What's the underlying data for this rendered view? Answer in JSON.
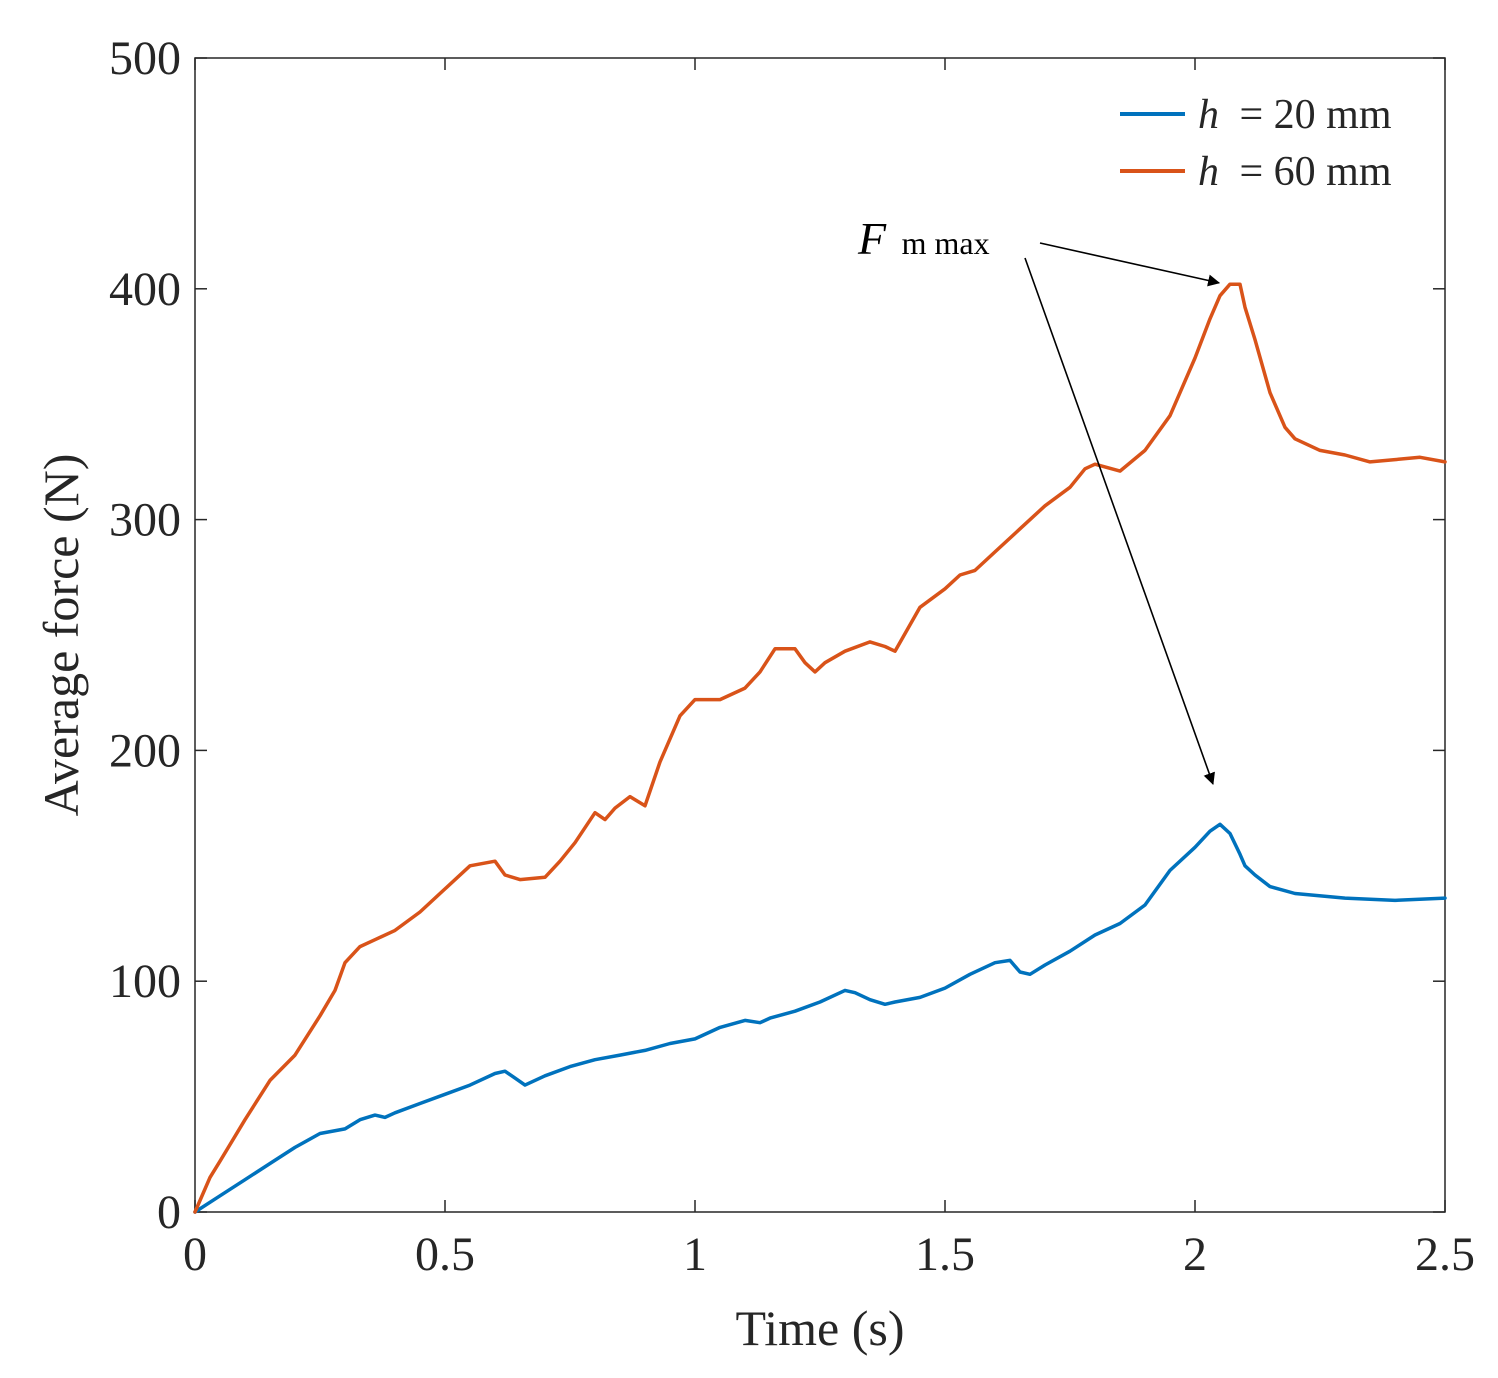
{
  "chart_data": {
    "type": "line",
    "title": "",
    "xlabel": "Time (s)",
    "ylabel": "Average force (N)",
    "xlim": [
      0,
      2.5
    ],
    "ylim": [
      0,
      500
    ],
    "xticks": [
      0,
      0.5,
      1,
      1.5,
      2,
      2.5
    ],
    "xtick_labels": [
      "0",
      "0.5",
      "1",
      "1.5",
      "2",
      "2.5"
    ],
    "yticks": [
      0,
      100,
      200,
      300,
      400,
      500
    ],
    "ytick_labels": [
      "0",
      "100",
      "200",
      "300",
      "400",
      "500"
    ],
    "grid": false,
    "legend_position": "top-right",
    "series": [
      {
        "name": "h = 20 mm",
        "legend_var": "h",
        "legend_rest": "= 20 mm",
        "color": "#0072BD",
        "x": [
          0,
          0.05,
          0.1,
          0.15,
          0.2,
          0.25,
          0.3,
          0.33,
          0.36,
          0.38,
          0.4,
          0.45,
          0.5,
          0.55,
          0.6,
          0.62,
          0.64,
          0.66,
          0.7,
          0.75,
          0.8,
          0.85,
          0.9,
          0.95,
          1.0,
          1.05,
          1.1,
          1.13,
          1.15,
          1.2,
          1.25,
          1.3,
          1.32,
          1.35,
          1.38,
          1.4,
          1.45,
          1.5,
          1.55,
          1.6,
          1.63,
          1.65,
          1.67,
          1.7,
          1.75,
          1.8,
          1.85,
          1.9,
          1.95,
          2.0,
          2.03,
          2.05,
          2.07,
          2.09,
          2.1,
          2.12,
          2.15,
          2.2,
          2.3,
          2.4,
          2.5
        ],
        "values": [
          0,
          7,
          14,
          21,
          28,
          34,
          36,
          40,
          42,
          41,
          43,
          47,
          51,
          55,
          60,
          61,
          58,
          55,
          59,
          63,
          66,
          68,
          70,
          73,
          75,
          80,
          83,
          82,
          84,
          87,
          91,
          96,
          95,
          92,
          90,
          91,
          93,
          97,
          103,
          108,
          109,
          104,
          103,
          107,
          113,
          120,
          125,
          133,
          148,
          158,
          165,
          168,
          164,
          155,
          150,
          146,
          141,
          138,
          136,
          135,
          136
        ]
      },
      {
        "name": "h = 60 mm",
        "legend_var": "h",
        "legend_rest": "= 60 mm",
        "color": "#D95319",
        "x": [
          0,
          0.03,
          0.05,
          0.1,
          0.15,
          0.2,
          0.25,
          0.28,
          0.3,
          0.33,
          0.36,
          0.4,
          0.45,
          0.5,
          0.55,
          0.6,
          0.62,
          0.65,
          0.7,
          0.73,
          0.76,
          0.8,
          0.82,
          0.84,
          0.87,
          0.9,
          0.93,
          0.97,
          1.0,
          1.05,
          1.1,
          1.13,
          1.16,
          1.2,
          1.22,
          1.24,
          1.26,
          1.3,
          1.35,
          1.38,
          1.4,
          1.45,
          1.5,
          1.53,
          1.56,
          1.6,
          1.65,
          1.7,
          1.75,
          1.78,
          1.8,
          1.85,
          1.9,
          1.95,
          2.0,
          2.03,
          2.05,
          2.07,
          2.09,
          2.1,
          2.12,
          2.15,
          2.18,
          2.2,
          2.25,
          2.3,
          2.35,
          2.4,
          2.45,
          2.5
        ],
        "values": [
          0,
          15,
          22,
          40,
          57,
          68,
          85,
          96,
          108,
          115,
          118,
          122,
          130,
          140,
          150,
          152,
          146,
          144,
          145,
          152,
          160,
          173,
          170,
          175,
          180,
          176,
          195,
          215,
          222,
          222,
          227,
          234,
          244,
          244,
          238,
          234,
          238,
          243,
          247,
          245,
          243,
          262,
          270,
          276,
          278,
          286,
          296,
          306,
          314,
          322,
          324,
          321,
          330,
          345,
          370,
          387,
          397,
          402,
          402,
          392,
          378,
          355,
          340,
          335,
          330,
          328,
          325,
          326,
          327,
          325
        ]
      }
    ],
    "annotations": [
      {
        "label_main": "F",
        "label_sub": "m max",
        "targets": [
          {
            "x": 2.06,
            "y": 402
          },
          {
            "x": 2.04,
            "y": 183
          }
        ]
      }
    ]
  }
}
